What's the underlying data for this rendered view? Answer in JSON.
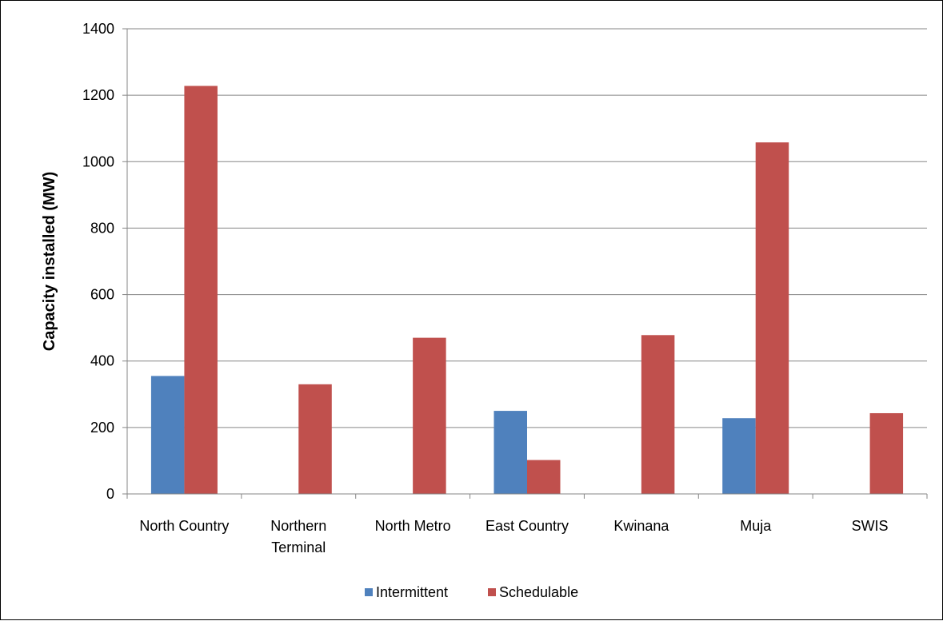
{
  "chart_data": {
    "type": "bar",
    "title": "",
    "xlabel": "",
    "ylabel": "Capacity installed (MW)",
    "ylim": [
      0,
      1400
    ],
    "yticks": [
      0,
      200,
      400,
      600,
      800,
      1000,
      1200,
      1400
    ],
    "grid": true,
    "legend_position": "bottom",
    "categories": [
      [
        "North Country"
      ],
      [
        "Northern",
        "Terminal"
      ],
      [
        "North Metro"
      ],
      [
        "East Country"
      ],
      [
        "Kwinana"
      ],
      [
        "Muja"
      ],
      [
        "SWIS"
      ]
    ],
    "series": [
      {
        "name": "Intermittent",
        "color": "#4F81BD",
        "values": [
          355,
          0,
          0,
          250,
          0,
          228,
          0
        ]
      },
      {
        "name": "Schedulable",
        "color": "#C0504D",
        "values": [
          1228,
          330,
          470,
          102,
          478,
          1058,
          243
        ]
      }
    ]
  }
}
